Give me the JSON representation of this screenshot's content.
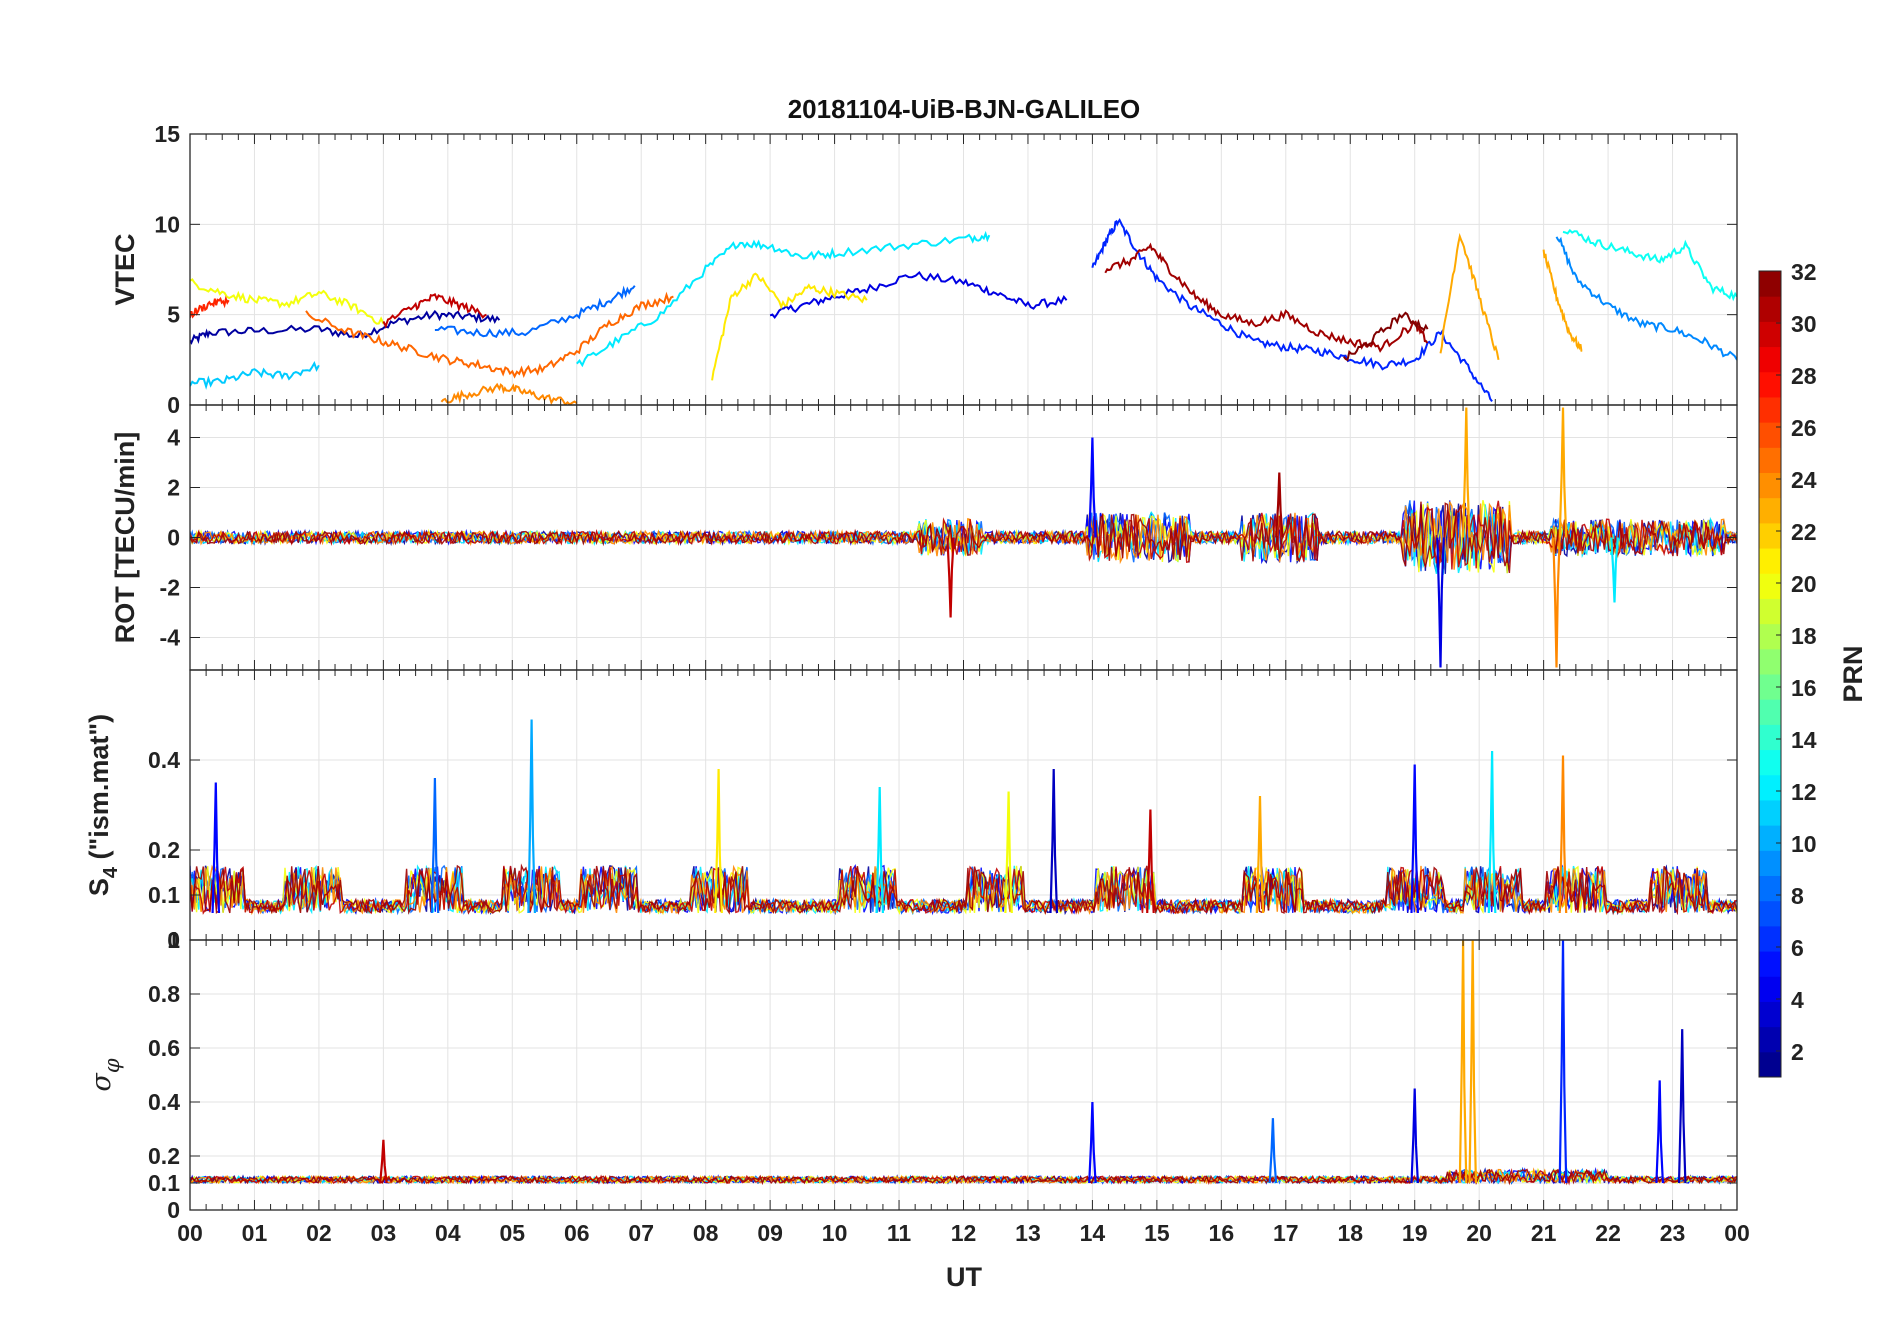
{
  "chart_data": {
    "type": "line",
    "title": "20181104-UiB-BJN-GALILEO",
    "xlabel": "UT",
    "x_ticks": [
      "00",
      "01",
      "02",
      "03",
      "04",
      "05",
      "06",
      "07",
      "08",
      "09",
      "10",
      "11",
      "12",
      "13",
      "14",
      "15",
      "16",
      "17",
      "18",
      "19",
      "20",
      "21",
      "22",
      "23",
      "00"
    ],
    "xlim_hours": [
      0,
      24
    ],
    "grid": true,
    "colorbar": {
      "label": "PRN",
      "range": [
        1,
        32
      ],
      "ticks": [
        "2",
        "4",
        "6",
        "8",
        "10",
        "12",
        "14",
        "16",
        "18",
        "20",
        "22",
        "24",
        "26",
        "28",
        "30",
        "32"
      ],
      "colormap": "jet"
    },
    "panels": [
      {
        "id": "vtec",
        "ylabel": "VTEC",
        "ylim": [
          0,
          15
        ],
        "yticks": [
          "0",
          "5",
          "10",
          "15"
        ],
        "series": [
          {
            "prn": 2,
            "x": [
              0,
              0.3,
              1.0,
              2.0,
              2.6,
              3.2,
              3.8,
              4.3,
              4.8
            ],
            "y": [
              3.5,
              4.0,
              4.1,
              4.2,
              3.8,
              4.6,
              5.0,
              4.9,
              4.7
            ]
          },
          {
            "prn": 4,
            "x": [
              9.0,
              9.5,
              10.0,
              10.5,
              11.2,
              12.0,
              12.5,
              13.0,
              13.6
            ],
            "y": [
              5.0,
              5.5,
              6.0,
              6.4,
              7.2,
              6.8,
              6.2,
              5.5,
              5.8
            ]
          },
          {
            "prn": 6,
            "x": [
              14.0,
              14.2,
              14.4,
              14.7,
              15.0,
              15.5,
              16.0,
              16.5,
              17.0,
              17.5,
              18.0,
              18.5,
              19.0,
              19.4,
              19.8,
              20.2
            ],
            "y": [
              7.5,
              9.0,
              10.2,
              8.5,
              7.0,
              5.5,
              4.5,
              3.5,
              3.2,
              3.0,
              2.6,
              2.2,
              2.5,
              4.0,
              2.2,
              0.2
            ]
          },
          {
            "prn": 8,
            "x": [
              3.8,
              4.5,
              5.2,
              6.0,
              6.5,
              6.9
            ],
            "y": [
              4.2,
              4.0,
              4.0,
              5.0,
              5.8,
              6.6
            ]
          },
          {
            "prn": 9,
            "x": [
              21.2,
              21.5,
              22.0,
              22.5,
              23.0,
              23.5,
              24.0
            ],
            "y": [
              9.5,
              7.0,
              5.5,
              4.5,
              4.2,
              3.5,
              2.5
            ]
          },
          {
            "prn": 11,
            "x": [
              0.0,
              0.5,
              1.0,
              1.5,
              2.0
            ],
            "y": [
              1.2,
              1.3,
              1.8,
              1.6,
              2.2
            ]
          },
          {
            "prn": 12,
            "x": [
              6.0,
              6.6,
              7.3,
              8.0,
              8.5,
              9.0,
              9.5,
              10.0,
              11.0,
              12.0,
              12.4
            ],
            "y": [
              2.2,
              3.5,
              5.0,
              7.5,
              9.0,
              8.8,
              8.2,
              8.4,
              8.8,
              9.2,
              9.4
            ]
          },
          {
            "prn": 13,
            "x": [
              21.3,
              21.8,
              22.3,
              22.8,
              23.2,
              23.6,
              24.0
            ],
            "y": [
              9.8,
              9.0,
              8.5,
              8.0,
              8.8,
              6.5,
              6.0
            ]
          },
          {
            "prn": 20,
            "x": [
              0.0,
              0.5,
              1.0,
              1.5,
              2.0,
              2.5,
              3.0
            ],
            "y": [
              6.8,
              6.2,
              5.8,
              5.6,
              6.2,
              5.5,
              4.5
            ]
          },
          {
            "prn": 21,
            "x": [
              8.1,
              8.4,
              8.8,
              9.2,
              9.6,
              10.0,
              10.5
            ],
            "y": [
              1.5,
              6.0,
              7.2,
              5.5,
              6.5,
              6.2,
              5.8
            ]
          },
          {
            "prn": 24,
            "x": [
              3.9,
              4.3,
              4.8,
              5.1,
              5.5,
              6.0
            ],
            "y": [
              0.2,
              0.6,
              1.0,
              0.8,
              0.4,
              0.1
            ]
          },
          {
            "prn": 25,
            "x": [
              1.8,
              2.5,
              3.0,
              3.5,
              4.0,
              4.5,
              5.0,
              5.5,
              6.0,
              6.5,
              7.0,
              7.5
            ],
            "y": [
              5.0,
              4.0,
              3.5,
              3.0,
              2.5,
              2.2,
              1.8,
              2.0,
              3.0,
              4.5,
              5.5,
              6.0
            ]
          },
          {
            "prn": 23,
            "x": [
              19.4,
              19.7,
              20.0,
              20.3
            ],
            "y": [
              3.0,
              9.5,
              6.0,
              2.5
            ]
          },
          {
            "prn": 23,
            "x": [
              21.0,
              21.2,
              21.4,
              21.6
            ],
            "y": [
              8.5,
              6.0,
              4.0,
              3.0
            ]
          },
          {
            "prn": 27,
            "x": [
              0.0,
              0.3,
              0.6
            ],
            "y": [
              5.0,
              5.6,
              5.8
            ]
          },
          {
            "prn": 30,
            "x": [
              3.0,
              3.5,
              3.8,
              4.2,
              4.6
            ],
            "y": [
              4.5,
              5.5,
              6.0,
              5.5,
              5.0
            ]
          },
          {
            "prn": 31,
            "x": [
              14.2,
              14.6,
              14.9,
              15.2,
              15.6,
              16.0,
              16.5,
              17.0,
              17.5,
              18.0,
              18.5,
              19.0,
              19.2
            ],
            "y": [
              7.5,
              8.0,
              8.8,
              7.5,
              6.0,
              5.0,
              4.5,
              5.0,
              4.0,
              3.5,
              3.2,
              4.5,
              3.5
            ]
          },
          {
            "prn": 32,
            "x": [
              17.9,
              18.3,
              18.8,
              19.2
            ],
            "y": [
              2.5,
              3.5,
              5.0,
              4.2
            ]
          }
        ]
      },
      {
        "id": "rot",
        "ylabel": "ROT [TECU/min]",
        "ylim": [
          -5.3,
          5.3
        ],
        "yticks": [
          "-4",
          "-2",
          "0",
          "2",
          "4"
        ],
        "series_note": "noise bursts around 0 with large excursions near 14, 17, 19.5-20 and 21.3 UT",
        "peaks": [
          {
            "prn": 5,
            "x": 14.0,
            "y": 4.0
          },
          {
            "prn": 30,
            "x": 11.8,
            "y": -3.2
          },
          {
            "prn": 23,
            "x": 19.8,
            "y": 5.2
          },
          {
            "prn": 23,
            "x": 21.3,
            "y": 5.2
          },
          {
            "prn": 4,
            "x": 19.4,
            "y": -5.2
          },
          {
            "prn": 24,
            "x": 21.2,
            "y": -5.2
          },
          {
            "prn": 12,
            "x": 22.1,
            "y": -2.6
          },
          {
            "prn": 31,
            "x": 16.9,
            "y": 2.6
          }
        ]
      },
      {
        "id": "s4",
        "ylabel": "S4 (\"ism.mat\")",
        "ylim": [
          0,
          0.6
        ],
        "yticks": [
          "0",
          "0.1",
          "0.2",
          "0.4"
        ],
        "peaks": [
          {
            "prn": 5,
            "x": 0.4,
            "y": 0.35
          },
          {
            "prn": 10,
            "x": 5.3,
            "y": 0.49
          },
          {
            "prn": 8,
            "x": 3.8,
            "y": 0.36
          },
          {
            "prn": 21,
            "x": 8.2,
            "y": 0.38
          },
          {
            "prn": 3,
            "x": 13.4,
            "y": 0.38
          },
          {
            "prn": 5,
            "x": 19.0,
            "y": 0.39
          },
          {
            "prn": 12,
            "x": 20.2,
            "y": 0.42
          },
          {
            "prn": 24,
            "x": 21.3,
            "y": 0.41
          },
          {
            "prn": 12,
            "x": 10.7,
            "y": 0.34
          },
          {
            "prn": 20,
            "x": 12.7,
            "y": 0.33
          },
          {
            "prn": 30,
            "x": 14.9,
            "y": 0.29
          },
          {
            "prn": 23,
            "x": 16.6,
            "y": 0.32
          }
        ]
      },
      {
        "id": "sigma_phi",
        "ylabel": "σφ",
        "ylim": [
          0,
          1.0
        ],
        "yticks": [
          "0",
          "0.1",
          "0.2",
          "0.4",
          "0.6",
          "0.8",
          "1"
        ],
        "peaks": [
          {
            "prn": 23,
            "x": 19.75,
            "y": 1.0
          },
          {
            "prn": 23,
            "x": 19.9,
            "y": 1.0
          },
          {
            "prn": 6,
            "x": 21.3,
            "y": 1.0
          },
          {
            "prn": 3,
            "x": 23.15,
            "y": 0.67
          },
          {
            "prn": 4,
            "x": 19.0,
            "y": 0.45
          },
          {
            "prn": 5,
            "x": 22.8,
            "y": 0.48
          },
          {
            "prn": 5,
            "x": 14.0,
            "y": 0.4
          },
          {
            "prn": 8,
            "x": 16.8,
            "y": 0.34
          },
          {
            "prn": 30,
            "x": 3.0,
            "y": 0.26
          }
        ]
      }
    ]
  }
}
